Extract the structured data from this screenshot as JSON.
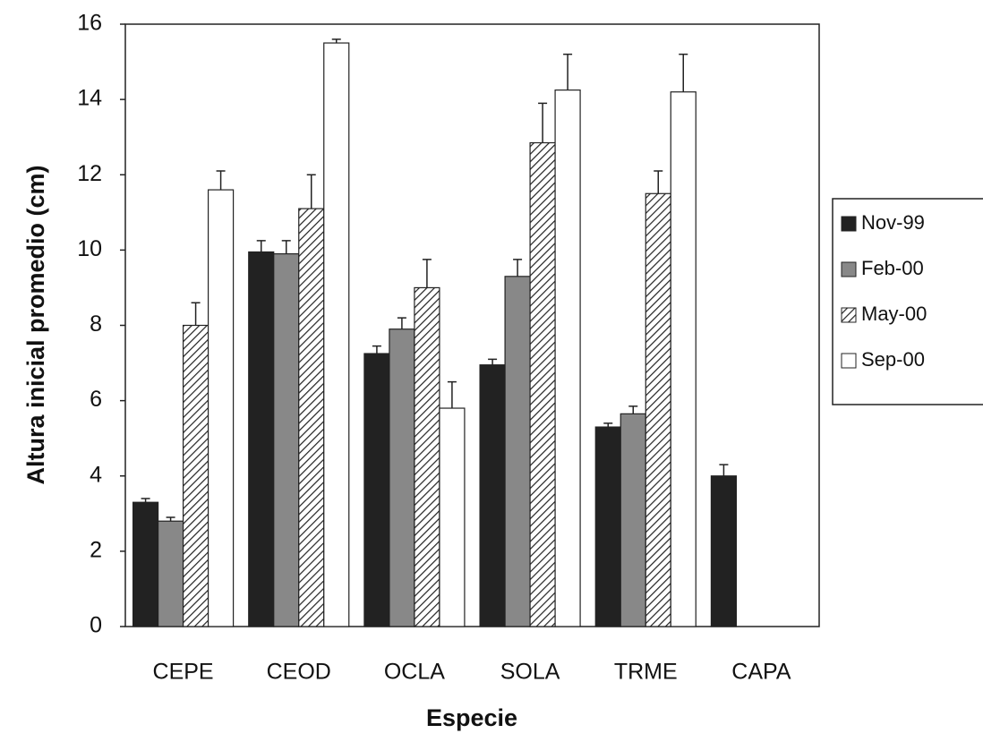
{
  "chart_data": {
    "type": "bar",
    "x_label": "Especie",
    "y_label": "Altura inicial promedio (cm)",
    "categories": [
      "CEPE",
      "CEOD",
      "OCLA",
      "SOLA",
      "TRME",
      "CAPA"
    ],
    "series": [
      {
        "name": "Nov-99",
        "color": "#222222",
        "values": [
          3.3,
          9.95,
          7.25,
          6.95,
          5.3,
          4.0
        ],
        "errors": [
          0.1,
          0.3,
          0.2,
          0.15,
          0.1,
          0.3
        ]
      },
      {
        "name": "Feb-00",
        "color": "#888888",
        "values": [
          2.8,
          9.9,
          7.9,
          9.3,
          5.65,
          null
        ],
        "errors": [
          0.1,
          0.35,
          0.3,
          0.45,
          0.2,
          null
        ]
      },
      {
        "name": "May-00",
        "color": "#ffffff",
        "pattern": "hatch",
        "values": [
          8.0,
          11.1,
          9.0,
          12.85,
          11.5,
          null
        ],
        "errors": [
          0.6,
          0.9,
          0.75,
          1.05,
          0.6,
          null
        ]
      },
      {
        "name": "Sep-00",
        "color": "#ffffff",
        "values": [
          11.6,
          15.5,
          5.8,
          14.25,
          14.2,
          null
        ],
        "errors": [
          0.5,
          0.1,
          0.7,
          0.95,
          1.0,
          null
        ]
      }
    ],
    "ylim": [
      0,
      16
    ],
    "yticks": [
      0,
      2,
      4,
      6,
      8,
      10,
      12,
      14,
      16
    ],
    "grid": false,
    "legend": "right"
  }
}
